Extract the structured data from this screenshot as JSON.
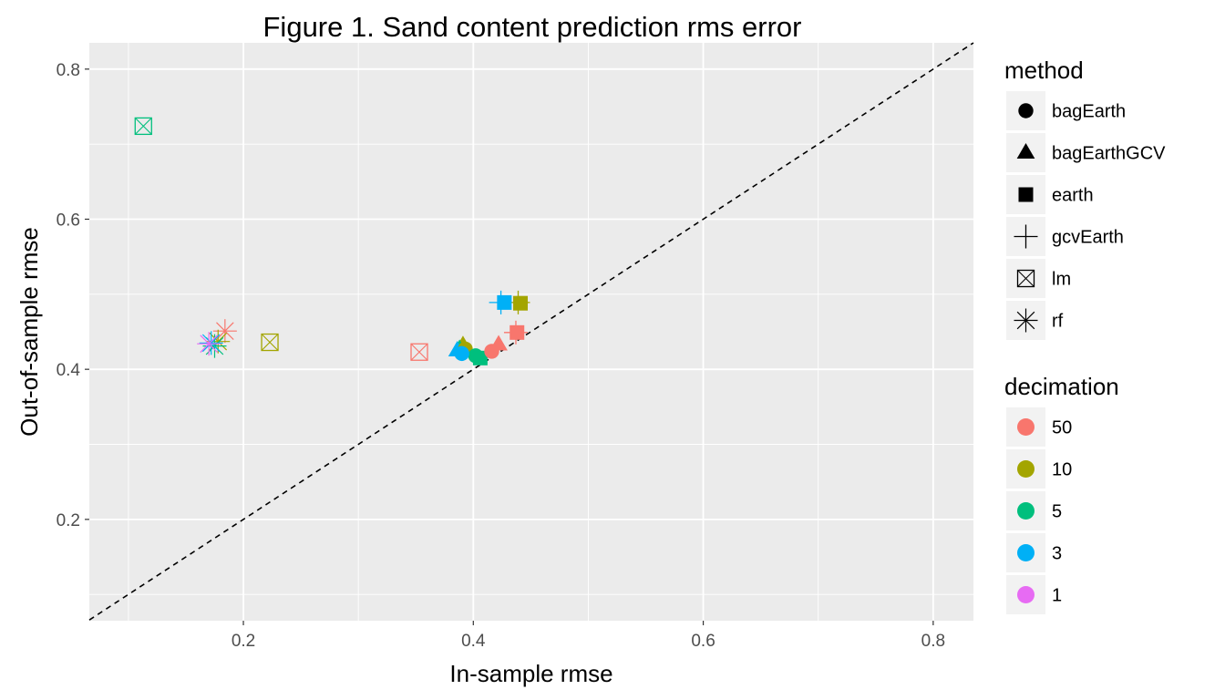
{
  "chart_data": {
    "type": "scatter",
    "title": "Figure 1. Sand content prediction rms error",
    "xlabel": "In-sample rmse",
    "ylabel": "Out-of-sample rmse",
    "xlim": [
      0.066,
      0.835
    ],
    "ylim": [
      0.065,
      0.835
    ],
    "x_ticks": [
      0.2,
      0.4,
      0.6,
      0.8
    ],
    "y_ticks": [
      0.2,
      0.4,
      0.6,
      0.8
    ],
    "x_tick_labels": [
      "0.2",
      "0.4",
      "0.6",
      "0.8"
    ],
    "y_tick_labels": [
      "0.2",
      "0.4",
      "0.6",
      "0.8"
    ],
    "grid": true,
    "reference_line": {
      "type": "identity",
      "style": "dashed",
      "color": "#000000"
    },
    "panel_background": "#ebebeb",
    "legend_placement": "right",
    "legends": [
      {
        "title": "method",
        "entries": [
          {
            "label": "bagEarth",
            "shape": "circle"
          },
          {
            "label": "bagEarthGCV",
            "shape": "triangle"
          },
          {
            "label": "earth",
            "shape": "square"
          },
          {
            "label": "gcvEarth",
            "shape": "plus"
          },
          {
            "label": "lm",
            "shape": "square-x"
          },
          {
            "label": "rf",
            "shape": "asterisk"
          }
        ]
      },
      {
        "title": "decimation",
        "entries": [
          {
            "label": "50",
            "color": "#f8766d"
          },
          {
            "label": "10",
            "color": "#a3a500"
          },
          {
            "label": "5",
            "color": "#00bf7d"
          },
          {
            "label": "3",
            "color": "#00b0f6"
          },
          {
            "label": "1",
            "color": "#e76bf3"
          }
        ]
      }
    ],
    "points": [
      {
        "method": "lm",
        "decimation": "5",
        "x": 0.113,
        "y": 0.724
      },
      {
        "method": "lm",
        "decimation": "10",
        "x": 0.223,
        "y": 0.436
      },
      {
        "method": "lm",
        "decimation": "50",
        "x": 0.353,
        "y": 0.423
      },
      {
        "method": "rf",
        "decimation": "50",
        "x": 0.184,
        "y": 0.451
      },
      {
        "method": "rf",
        "decimation": "10",
        "x": 0.178,
        "y": 0.437
      },
      {
        "method": "rf",
        "decimation": "5",
        "x": 0.175,
        "y": 0.431
      },
      {
        "method": "rf",
        "decimation": "3",
        "x": 0.172,
        "y": 0.435
      },
      {
        "method": "rf",
        "decimation": "1",
        "x": 0.17,
        "y": 0.434
      },
      {
        "method": "gcvEarth",
        "decimation": "3",
        "x": 0.424,
        "y": 0.489
      },
      {
        "method": "gcvEarth",
        "decimation": "10",
        "x": 0.439,
        "y": 0.489
      },
      {
        "method": "gcvEarth",
        "decimation": "50",
        "x": 0.437,
        "y": 0.449
      },
      {
        "method": "earth",
        "decimation": "3",
        "x": 0.427,
        "y": 0.489
      },
      {
        "method": "earth",
        "decimation": "10",
        "x": 0.441,
        "y": 0.488
      },
      {
        "method": "earth",
        "decimation": "50",
        "x": 0.438,
        "y": 0.449
      },
      {
        "method": "earth",
        "decimation": "5",
        "x": 0.406,
        "y": 0.415
      },
      {
        "method": "bagEarthGCV",
        "decimation": "50",
        "x": 0.422,
        "y": 0.433
      },
      {
        "method": "bagEarthGCV",
        "decimation": "10",
        "x": 0.391,
        "y": 0.432
      },
      {
        "method": "bagEarthGCV",
        "decimation": "5",
        "x": 0.388,
        "y": 0.427
      },
      {
        "method": "bagEarthGCV",
        "decimation": "3",
        "x": 0.386,
        "y": 0.425
      },
      {
        "method": "bagEarth",
        "decimation": "50",
        "x": 0.416,
        "y": 0.424
      },
      {
        "method": "bagEarth",
        "decimation": "10",
        "x": 0.393,
        "y": 0.427
      },
      {
        "method": "bagEarth",
        "decimation": "5",
        "x": 0.402,
        "y": 0.418
      },
      {
        "method": "bagEarth",
        "decimation": "3",
        "x": 0.39,
        "y": 0.421
      }
    ]
  }
}
